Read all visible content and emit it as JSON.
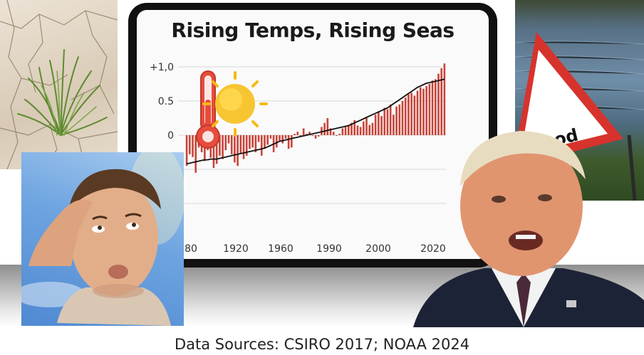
{
  "caption": {
    "source_text": "Data Sources: CSIRO 2017; NOAA 2024"
  },
  "chart": {
    "title": "Rising Temps, Rising Seas"
  },
  "flood_sign": {
    "text": "Flood"
  },
  "icons": [
    "thermometer-icon",
    "sun-icon"
  ],
  "colors": {
    "bar": "#c8453a",
    "line": "#111111",
    "tablet_bezel": "#111111",
    "sign_border": "#d6332c"
  },
  "chart_data": {
    "type": "bar",
    "y_tick_labels": [
      "+1,0",
      "0.5",
      "0"
    ],
    "x_tick_labels": [
      "80",
      "1920",
      "1960",
      "1990",
      "2000",
      "2020"
    ],
    "ylim": [
      -1.0,
      1.1
    ],
    "grid": true,
    "series": [
      {
        "values": [
          -0.45,
          -0.28,
          -0.32,
          -0.55,
          -0.18,
          -0.25,
          -0.38,
          -0.22,
          -0.33,
          -0.48,
          -0.42,
          -0.3,
          -0.35,
          -0.22,
          -0.12,
          -0.28,
          -0.4,
          -0.45,
          -0.26,
          -0.35,
          -0.3,
          -0.2,
          -0.18,
          -0.25,
          -0.1,
          -0.3,
          -0.2,
          -0.14,
          -0.05,
          -0.25,
          -0.18,
          -0.08,
          -0.12,
          -0.05,
          -0.2,
          -0.18,
          0.02,
          0.05,
          -0.02,
          0.1,
          0.02,
          0.05,
          0.0,
          -0.05,
          -0.02,
          0.12,
          0.18,
          0.25,
          0.1,
          0.05,
          0.0,
          0.02,
          0.1,
          0.12,
          0.15,
          0.18,
          0.22,
          0.14,
          0.12,
          0.2,
          0.25,
          0.15,
          0.18,
          0.3,
          0.35,
          0.28,
          0.4,
          0.38,
          0.45,
          0.3,
          0.42,
          0.45,
          0.5,
          0.55,
          0.6,
          0.62,
          0.58,
          0.65,
          0.7,
          0.68,
          0.72,
          0.75,
          0.8,
          0.82,
          0.9,
          0.98,
          1.05
        ]
      },
      {
        "values": [
          -0.42,
          -0.41,
          -0.4,
          -0.39,
          -0.38,
          -0.37,
          -0.36,
          -0.36,
          -0.35,
          -0.35,
          -0.35,
          -0.34,
          -0.33,
          -0.32,
          -0.31,
          -0.3,
          -0.29,
          -0.28,
          -0.27,
          -0.26,
          -0.25,
          -0.24,
          -0.23,
          -0.22,
          -0.21,
          -0.2,
          -0.19,
          -0.17,
          -0.15,
          -0.13,
          -0.11,
          -0.09,
          -0.08,
          -0.07,
          -0.06,
          -0.05,
          -0.04,
          -0.03,
          -0.02,
          -0.01,
          0.0,
          0.01,
          0.02,
          0.03,
          0.04,
          0.05,
          0.06,
          0.07,
          0.08,
          0.09,
          0.1,
          0.11,
          0.12,
          0.13,
          0.14,
          0.16,
          0.18,
          0.2,
          0.22,
          0.24,
          0.26,
          0.28,
          0.3,
          0.32,
          0.34,
          0.36,
          0.38,
          0.4,
          0.43,
          0.46,
          0.49,
          0.52,
          0.55,
          0.58,
          0.61,
          0.64,
          0.67,
          0.7,
          0.72,
          0.74,
          0.76,
          0.77,
          0.78,
          0.79,
          0.8,
          0.81,
          0.82
        ]
      }
    ]
  }
}
